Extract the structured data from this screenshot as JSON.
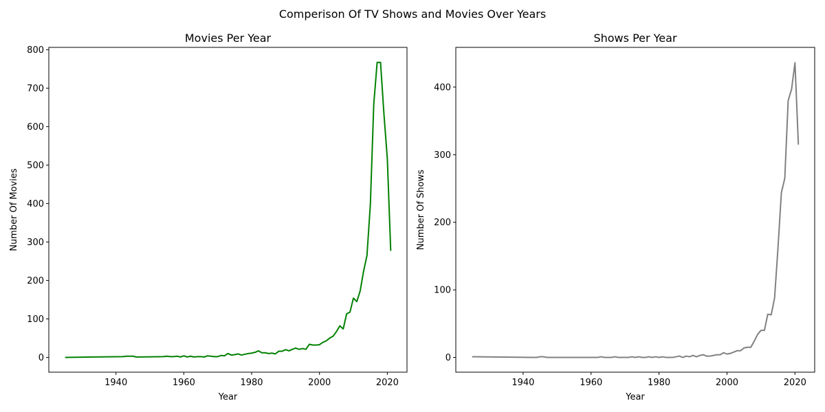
{
  "suptitle": "Comperison Of TV Shows and Movies Over Years",
  "chart_data": [
    {
      "type": "line",
      "title": "Movies Per Year",
      "xlabel": "Year",
      "ylabel": "Number Of Movies",
      "xlim": [
        1920.2,
        2025.8
      ],
      "ylim": [
        -38.5,
        806
      ],
      "xticks": [
        1940,
        1960,
        1980,
        2000,
        2020
      ],
      "yticks": [
        0,
        100,
        200,
        300,
        400,
        500,
        600,
        700,
        800
      ],
      "grid": false,
      "color": "#008000",
      "x": [
        1925,
        1942,
        1943,
        1945,
        1946,
        1947,
        1954,
        1955,
        1956,
        1957,
        1958,
        1959,
        1960,
        1961,
        1962,
        1963,
        1964,
        1965,
        1966,
        1967,
        1968,
        1969,
        1970,
        1971,
        1972,
        1973,
        1974,
        1975,
        1976,
        1977,
        1978,
        1979,
        1980,
        1981,
        1982,
        1983,
        1984,
        1985,
        1986,
        1987,
        1988,
        1989,
        1990,
        1991,
        1992,
        1993,
        1994,
        1995,
        1996,
        1997,
        1998,
        1999,
        2000,
        2001,
        2002,
        2003,
        2004,
        2005,
        2006,
        2007,
        2008,
        2009,
        2010,
        2011,
        2012,
        2013,
        2014,
        2015,
        2016,
        2017,
        2018,
        2019,
        2020,
        2021
      ],
      "y": [
        0,
        2,
        3,
        3,
        1,
        1,
        2,
        3,
        2,
        2,
        3,
        1,
        4,
        1,
        3,
        1,
        2,
        2,
        1,
        4,
        3,
        2,
        2,
        5,
        4,
        10,
        6,
        7,
        9,
        6,
        8,
        10,
        11,
        13,
        17,
        12,
        12,
        10,
        11,
        9,
        16,
        16,
        20,
        17,
        21,
        24,
        21,
        23,
        21,
        34,
        32,
        32,
        33,
        39,
        43,
        50,
        55,
        67,
        82,
        74,
        113,
        118,
        154,
        145,
        173,
        224,
        265,
        398,
        658,
        767,
        767,
        633,
        517,
        277
      ]
    },
    {
      "type": "line",
      "title": "Shows Per Year",
      "xlabel": "Year",
      "ylabel": "Number Of Shows",
      "xlim": [
        1920.2,
        2025.8
      ],
      "ylim": [
        -21.8,
        458.8
      ],
      "xticks": [
        1940,
        1960,
        1980,
        2000,
        2020
      ],
      "yticks": [
        0,
        100,
        200,
        300,
        400
      ],
      "grid": false,
      "color": "#808080",
      "x": [
        1925,
        1943,
        1944,
        1945,
        1946,
        1947,
        1948,
        1949,
        1950,
        1951,
        1952,
        1953,
        1954,
        1955,
        1956,
        1957,
        1958,
        1959,
        1960,
        1961,
        1962,
        1963,
        1964,
        1965,
        1966,
        1967,
        1968,
        1969,
        1970,
        1971,
        1972,
        1973,
        1974,
        1975,
        1976,
        1977,
        1978,
        1979,
        1980,
        1981,
        1982,
        1983,
        1984,
        1985,
        1986,
        1987,
        1988,
        1989,
        1990,
        1991,
        1992,
        1993,
        1994,
        1995,
        1996,
        1997,
        1998,
        1999,
        2000,
        2001,
        2002,
        2003,
        2004,
        2005,
        2006,
        2007,
        2008,
        2009,
        2010,
        2011,
        2012,
        2013,
        2014,
        2015,
        2016,
        2017,
        2018,
        2019,
        2020,
        2021
      ],
      "y": [
        1,
        0,
        0,
        1,
        1,
        0,
        0,
        0,
        0,
        0,
        0,
        0,
        0,
        0,
        0,
        0,
        0,
        0,
        0,
        0,
        0,
        1,
        0,
        0,
        0,
        1,
        0,
        0,
        0,
        0,
        1,
        0,
        1,
        0,
        0,
        1,
        0,
        1,
        0,
        1,
        0,
        0,
        0,
        1,
        2,
        0,
        2,
        1,
        3,
        1,
        3,
        4,
        2,
        2,
        3,
        4,
        4,
        7,
        5,
        6,
        8,
        10,
        10,
        14,
        15,
        15,
        24,
        34,
        40,
        40,
        64,
        63,
        88,
        162,
        244,
        265,
        380,
        397,
        436,
        315
      ]
    }
  ]
}
